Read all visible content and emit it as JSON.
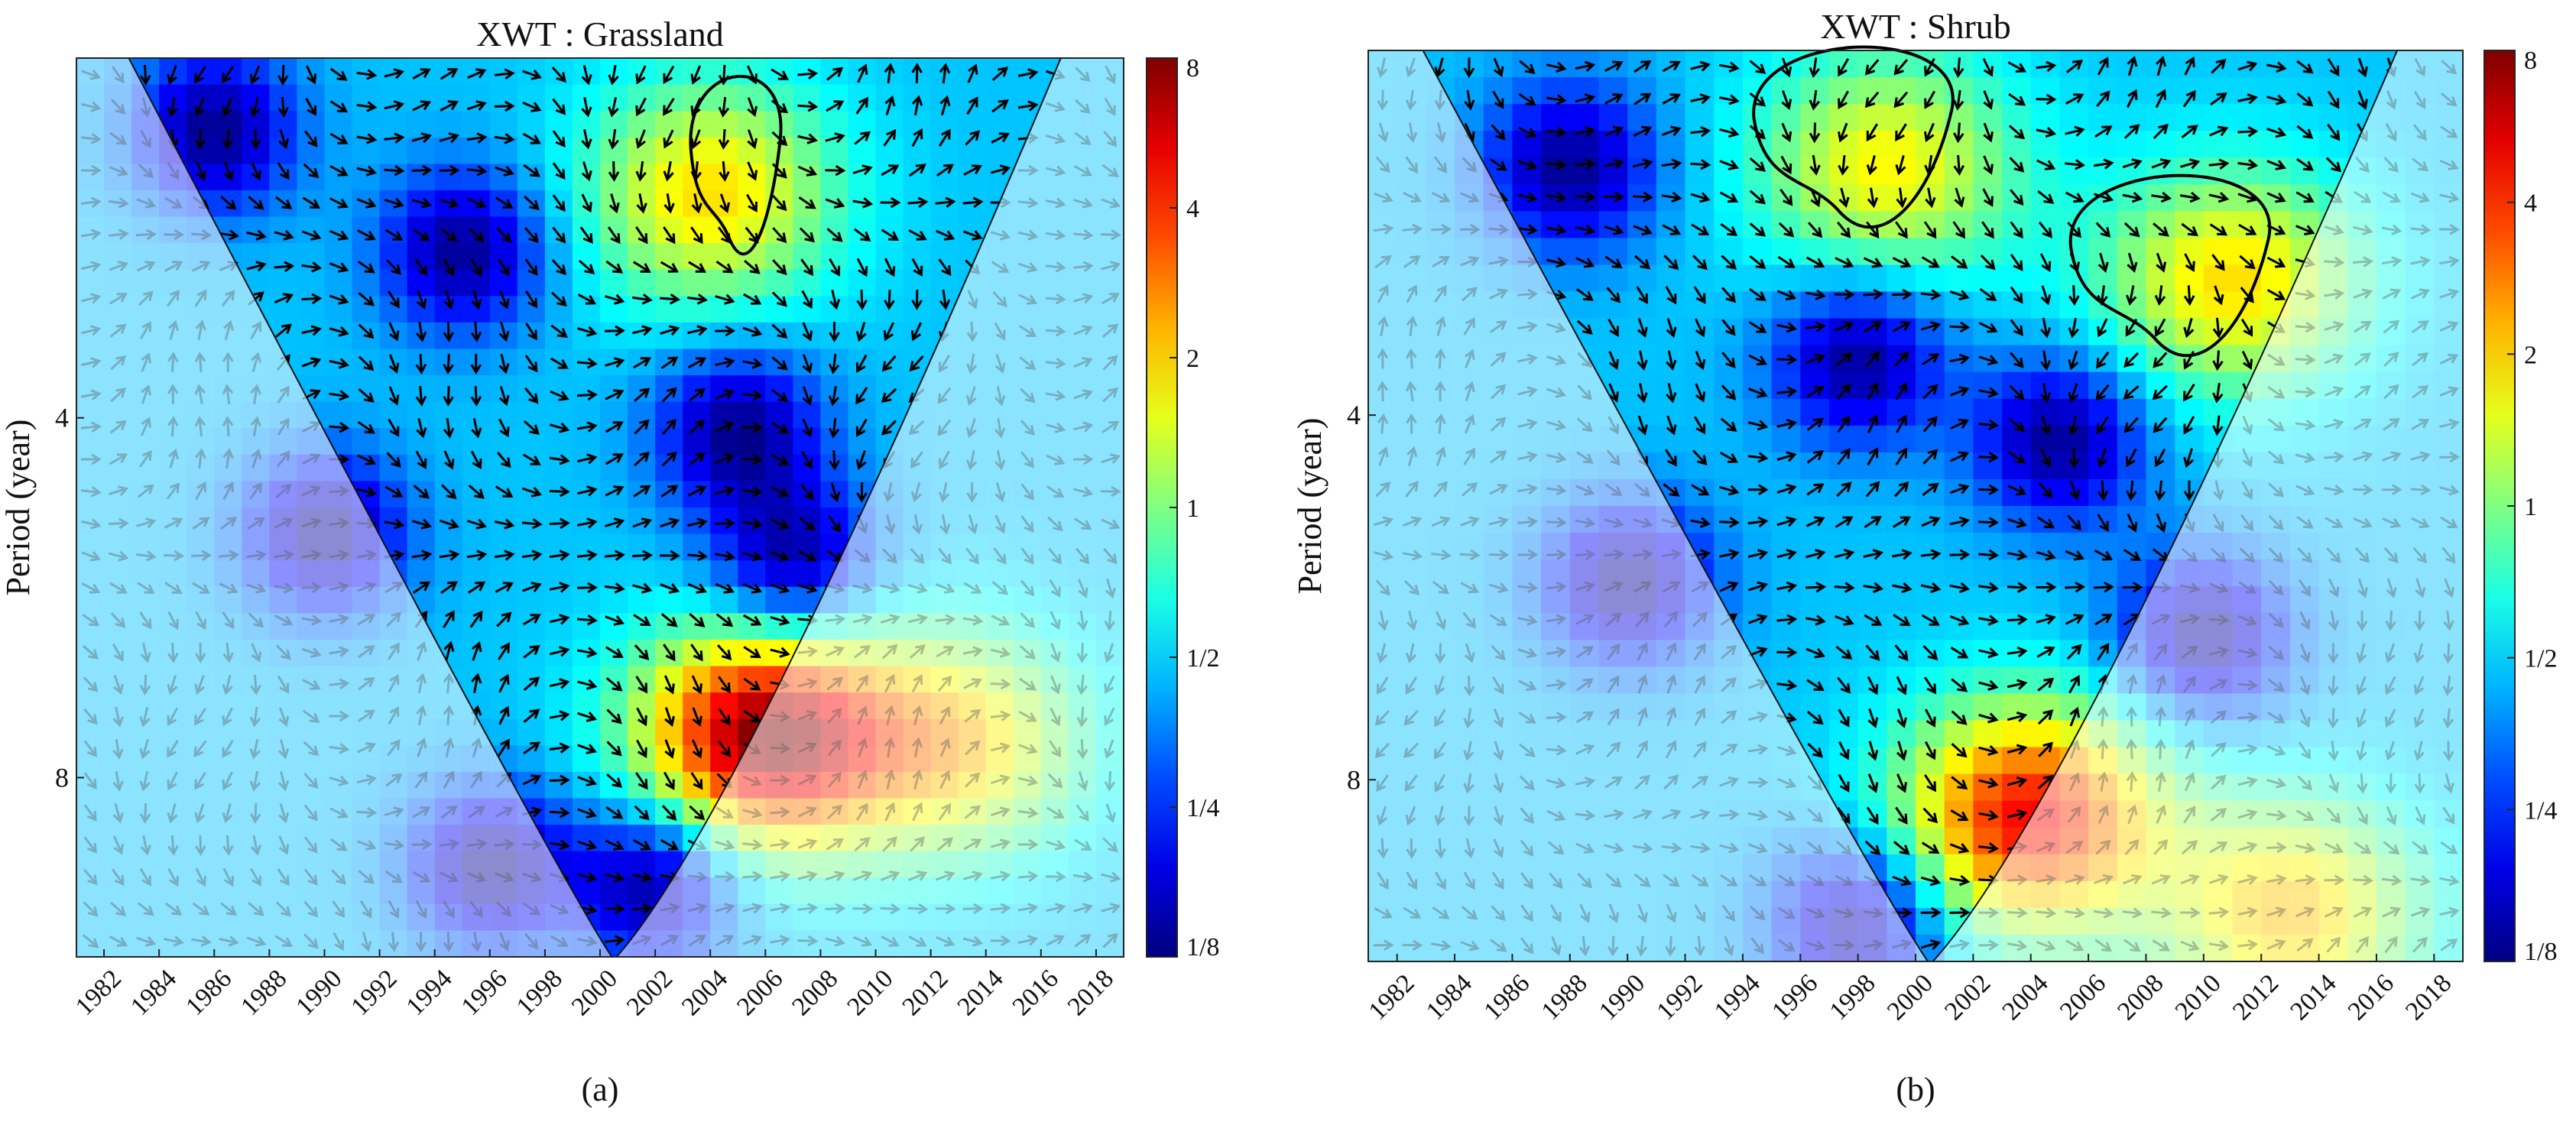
{
  "figure": {
    "panels": [
      {
        "panel_label": "(a)",
        "chart_data": {
          "type": "heatmap",
          "subtype": "wavelet-cross-spectrum",
          "title": "XWT : Grassland",
          "ylabel": "Period (year)",
          "xlabel": "",
          "x_ticks": [
            "1982",
            "1984",
            "1986",
            "1988",
            "1990",
            "1992",
            "1994",
            "1996",
            "1998",
            "2000",
            "2002",
            "2004",
            "2006",
            "2008",
            "2010",
            "2012",
            "2014",
            "2016",
            "2018"
          ],
          "xlim": [
            1981,
            2019
          ],
          "y_ticks": [
            "4",
            "8"
          ],
          "y_tick_values": [
            4,
            8
          ],
          "ylim": [
            2,
            11.3
          ],
          "y_scale": "log2",
          "colorbar": {
            "ticks": [
              "1/8",
              "1/4",
              "1/2",
              "1",
              "2",
              "4",
              "8"
            ],
            "tick_values": [
              0.125,
              0.25,
              0.5,
              1,
              2,
              4,
              8
            ],
            "scale": "log2",
            "colormap": "jet"
          },
          "cone_of_influence": {
            "apex_x": 2000.5
          },
          "hotspots": [
            {
              "x": 2006,
              "y": 7.4,
              "power": 3.5
            },
            {
              "x": 2004,
              "y": 2.6,
              "power": 0.9
            },
            {
              "x": 2013,
              "y": 7.5,
              "power": 0.9
            }
          ],
          "coldspots": [
            {
              "x": 1986,
              "y": 2.3
            },
            {
              "x": 1995,
              "y": 2.9
            },
            {
              "x": 2005,
              "y": 4.1
            },
            {
              "x": 2007,
              "y": 5.3
            },
            {
              "x": 1990,
              "y": 5.0
            },
            {
              "x": 2002,
              "y": 9.8
            },
            {
              "x": 1996,
              "y": 9.5
            }
          ],
          "significance_contours": [
            {
              "center_x": 2005,
              "center_y": 2.45
            }
          ],
          "phase_arrows": "shown"
        }
      },
      {
        "panel_label": "(b)",
        "chart_data": {
          "type": "heatmap",
          "subtype": "wavelet-cross-spectrum",
          "title": "XWT : Shrub",
          "ylabel": "Period (year)",
          "xlabel": "",
          "x_ticks": [
            "1982",
            "1984",
            "1986",
            "1988",
            "1990",
            "1992",
            "1994",
            "1996",
            "1998",
            "2000",
            "2002",
            "2004",
            "2006",
            "2008",
            "2010",
            "2012",
            "2014",
            "2016",
            "2018"
          ],
          "xlim": [
            1981,
            2019
          ],
          "y_ticks": [
            "4",
            "8"
          ],
          "y_tick_values": [
            4,
            8
          ],
          "ylim": [
            2,
            11.3
          ],
          "y_scale": "log2",
          "colorbar": {
            "ticks": [
              "1/8",
              "1/4",
              "1/2",
              "1",
              "2",
              "4",
              "8"
            ],
            "tick_values": [
              0.125,
              0.25,
              0.5,
              1,
              2,
              4,
              8
            ],
            "scale": "log2",
            "colormap": "jet"
          },
          "cone_of_influence": {
            "apex_x": 2000.5
          },
          "hotspots": [
            {
              "x": 2004,
              "y": 8.6,
              "power": 2.2
            },
            {
              "x": 2013,
              "y": 10.3,
              "power": 1.0
            },
            {
              "x": 1999,
              "y": 2.5,
              "power": 0.8
            },
            {
              "x": 2011,
              "y": 3.1,
              "power": 0.9
            }
          ],
          "coldspots": [
            {
              "x": 1988,
              "y": 2.5
            },
            {
              "x": 1998,
              "y": 3.6
            },
            {
              "x": 2005,
              "y": 4.2
            },
            {
              "x": 1990,
              "y": 5.5
            },
            {
              "x": 2010,
              "y": 6.1
            },
            {
              "x": 1998,
              "y": 10.5
            }
          ],
          "significance_contours": [
            {
              "center_x": 1998,
              "center_y": 2.35
            },
            {
              "center_x": 2009,
              "center_y": 3.0
            }
          ],
          "phase_arrows": "shown"
        }
      }
    ]
  }
}
